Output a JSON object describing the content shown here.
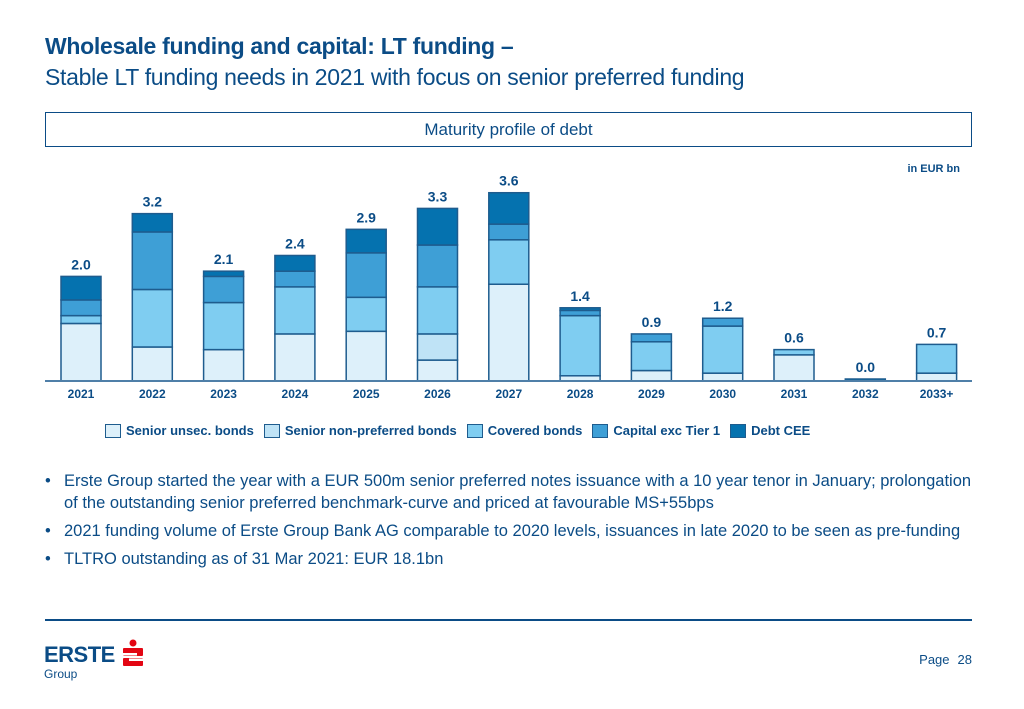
{
  "header": {
    "title": "Wholesale funding and capital: LT funding –",
    "subtitle": "Stable LT funding needs in 2021 with focus on senior preferred funding"
  },
  "chart_box_title": "Maturity profile of debt",
  "unit_label": "in EUR bn",
  "colors": {
    "senior_unsec": "#DDF0FA",
    "senior_np": "#BFE3F6",
    "covered": "#7FCDF1",
    "capital": "#3E9FD6",
    "debt_cee": "#0572AF",
    "stroke": "#1E5C8E",
    "text": "#0B4C86"
  },
  "chart_data": {
    "type": "bar",
    "stacked": true,
    "title": "Maturity profile of debt",
    "ylabel": "in EUR bn",
    "xlabel": "",
    "ylim": [
      0,
      3.8
    ],
    "grid": false,
    "legend_position": "bottom",
    "categories": [
      "2021",
      "2022",
      "2023",
      "2024",
      "2025",
      "2026",
      "2027",
      "2028",
      "2029",
      "2030",
      "2031",
      "2032",
      "2033+"
    ],
    "totals": [
      "2.0",
      "3.2",
      "2.1",
      "2.4",
      "2.9",
      "3.3",
      "3.6",
      "1.4",
      "0.9",
      "1.2",
      "0.6",
      "0.0",
      "0.7"
    ],
    "series": [
      {
        "name": "Senior unsec. bonds",
        "key": "senior_unsec",
        "values": [
          1.1,
          0.65,
          0.6,
          0.9,
          0.95,
          0.4,
          1.85,
          0.1,
          0.2,
          0.15,
          0.5,
          0.0,
          0.15
        ]
      },
      {
        "name": "Senior non-preferred bonds",
        "key": "senior_np",
        "values": [
          0.0,
          0.0,
          0.0,
          0.0,
          0.0,
          0.5,
          0.0,
          0.0,
          0.0,
          0.0,
          0.0,
          0.0,
          0.0
        ]
      },
      {
        "name": "Covered bonds",
        "key": "covered",
        "values": [
          0.15,
          1.1,
          0.9,
          0.9,
          0.65,
          0.9,
          0.85,
          1.15,
          0.55,
          0.9,
          0.1,
          0.0,
          0.55
        ]
      },
      {
        "name": "Capital exc Tier 1",
        "key": "capital",
        "values": [
          0.3,
          1.1,
          0.5,
          0.3,
          0.85,
          0.8,
          0.3,
          0.1,
          0.15,
          0.15,
          0.0,
          0.0,
          0.0
        ]
      },
      {
        "name": "Debt CEE",
        "key": "debt_cee",
        "values": [
          0.45,
          0.35,
          0.1,
          0.3,
          0.45,
          0.7,
          0.6,
          0.05,
          0.0,
          0.0,
          0.0,
          0.02,
          0.0
        ]
      }
    ]
  },
  "bullets": [
    "Erste Group started the year with a EUR 500m senior preferred notes issuance with a 10 year tenor in January; prolongation of the outstanding senior preferred benchmark-curve and priced at favourable MS+55bps",
    "2021 funding volume of Erste Group Bank AG comparable to 2020 levels, issuances in late 2020 to be seen as pre-funding",
    "TLTRO outstanding as of 31 Mar 2021: EUR 18.1bn"
  ],
  "footer": {
    "logo_text": "ERSTE",
    "logo_sub": "Group",
    "page_label": "Page",
    "page_number": "28"
  }
}
